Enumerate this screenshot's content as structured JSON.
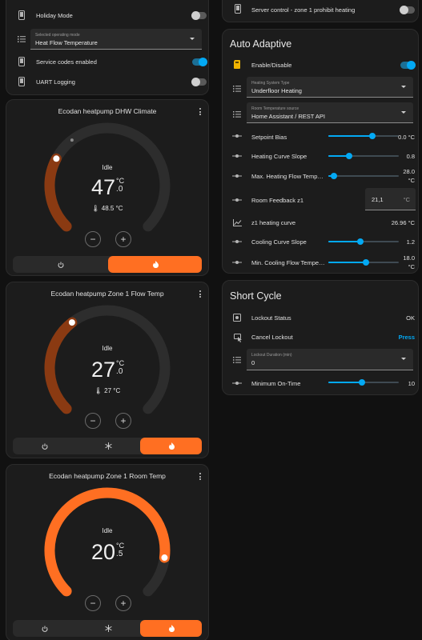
{
  "colors": {
    "accent": "#03a9f4",
    "heat": "#ff6f22",
    "heat_dark": "#8a3a12",
    "card": "#1c1c1c"
  },
  "top_left_card": {
    "holiday_mode": {
      "label": "Holiday Mode",
      "icon": "cellphone-icon",
      "state": "off"
    },
    "operating_mode": {
      "label": "Selected operating mode",
      "value": "Heat Flow Temperature",
      "icon": "list-icon"
    },
    "service_codes": {
      "label": "Service codes enabled",
      "icon": "cellphone-icon",
      "state": "on"
    },
    "uart_logging": {
      "label": "UART Logging",
      "icon": "cellphone-icon",
      "state": "off"
    }
  },
  "top_right_card": {
    "server_control": {
      "label": "Server control - zone 1 prohibit heating",
      "icon": "cellphone-icon",
      "state": "off"
    }
  },
  "auto_adaptive": {
    "title": "Auto Adaptive",
    "enable": {
      "label": "Enable/Disable",
      "icon": "sd-card-icon",
      "state": "on"
    },
    "heating_system_type": {
      "label": "Heating System Type",
      "value": "Underfloor Heating"
    },
    "room_temp_source": {
      "label": "Room Temperature source",
      "value": "Home Assistant / REST API"
    },
    "setpoint_bias": {
      "label": "Setpoint Bias",
      "value": "0.0 °C",
      "level": 0.62
    },
    "heating_curve_slope": {
      "label": "Heating Curve Slope",
      "value": "0.8",
      "level": 0.3
    },
    "max_heating_flow": {
      "label": "Max. Heating Flow Temper...",
      "value": "28.0\n°C",
      "value_line1": "28.0",
      "value_line2": "°C",
      "level": 0.08
    },
    "room_feedback": {
      "label": "Room Feedback z1",
      "value": "21,1",
      "unit": "°C"
    },
    "z1_heating_curve": {
      "label": "z1 heating curve",
      "value": "26.96 °C"
    },
    "cooling_curve_slope": {
      "label": "Cooling Curve Slope",
      "value": "1.2",
      "level": 0.45
    },
    "min_cooling_flow": {
      "label": "Min. Cooling Flow Tempera...",
      "value_line1": "18.0",
      "value_line2": "°C",
      "level": 0.53
    }
  },
  "short_cycle": {
    "title": "Short Cycle",
    "lockout_status": {
      "label": "Lockout Status",
      "value": "OK"
    },
    "cancel_lockout": {
      "label": "Cancel Lockout",
      "action": "Press"
    },
    "lockout_duration": {
      "label": "Lockout Duration (min)",
      "value": "0"
    },
    "min_on_time": {
      "label": "Minimum On-Time",
      "value": "10",
      "level": 0.48
    }
  },
  "thermostats": [
    {
      "title": "Ecodan heatpump DHW Climate",
      "status": "Idle",
      "target_int": "47",
      "target_dec": ".0",
      "unit": "°C",
      "current": "48.5 °C",
      "setpoint_fraction": 0.27,
      "current_fraction": 0.36,
      "modes": [
        "power",
        "heat"
      ],
      "active_mode": "heat"
    },
    {
      "title": "Ecodan heatpump Zone 1 Flow Temp",
      "status": "Idle",
      "target_int": "27",
      "target_dec": ".0",
      "unit": "°C",
      "current": "27 °C",
      "setpoint_fraction": 0.36,
      "modes": [
        "power",
        "cool",
        "heat"
      ],
      "active_mode": "heat"
    },
    {
      "title": "Ecodan heatpump Zone 1 Room Temp",
      "status": "Idle",
      "target_int": "20",
      "target_dec": ".5",
      "unit": "°C",
      "setpoint_fraction": 0.86,
      "modes": [
        "power",
        "cool",
        "heat"
      ],
      "active_mode": "heat"
    }
  ],
  "controls": {
    "minus": "−",
    "plus": "+"
  }
}
